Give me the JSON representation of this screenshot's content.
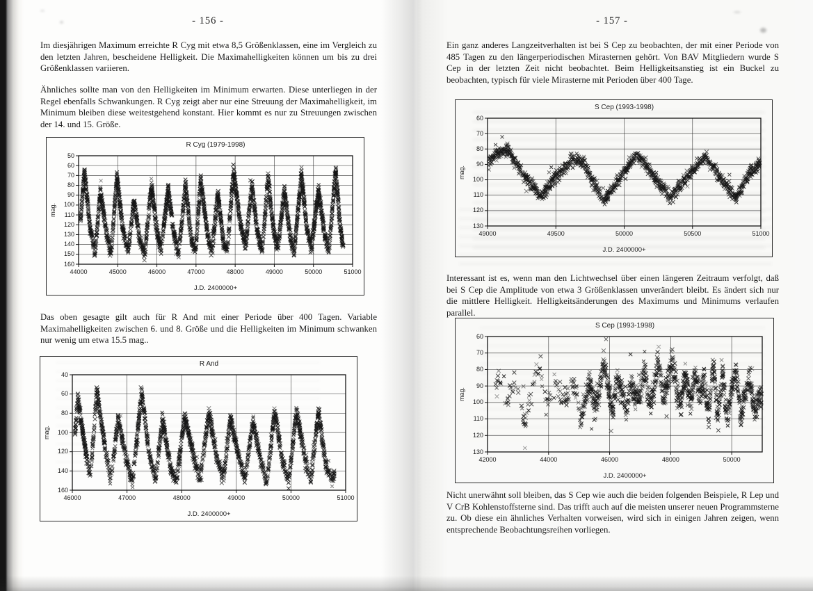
{
  "colors": {
    "ink": "#1b1b1b",
    "paper": "#fdfdfc",
    "marker": "#1c1c1c",
    "grid": "#3a3a3a"
  },
  "scan": {
    "left_page": {
      "page_number": "- 156 -",
      "paragraphs": [
        "Im diesjährigen Maximum erreichte R Cyg mit etwa 8,5 Größenklassen, eine im Vergleich zu den letzten Jahren, bescheidene Helligkeit. Die Maximahelligkeiten können um bis zu drei Größenklassen variieren.",
        "Ähnliches sollte man von den Helligkeiten im Minimum erwarten. Diese unterliegen in der Regel ebenfalls Schwankungen. R Cyg zeigt aber nur eine Streuung der Maximahelligkeit, im Minimum bleiben diese weitestgehend konstant. Hier kommt es nur zu Streuungen zwischen der 14. und 15. Größe.",
        "Das oben gesagte gilt auch für R And mit einer Periode über 400 Tagen. Variable Maximahelligkeiten zwischen 6. und 8. Größe und die Helligkeiten im Minimum schwanken nur wenig um etwa 15.5 mag.."
      ]
    },
    "right_page": {
      "page_number": "- 157 -",
      "paragraphs": [
        "Ein ganz anderes Langzeitverhalten ist bei S Cep zu beobachten, der mit einer Periode von 485 Tagen zu den längerperiodischen Mirasternen gehört. Von BAV Mitgliedern wurde S Cep in der letzten Zeit nicht beobachtet. Beim Helligkeitsanstieg ist ein Buckel zu beobachten, typisch für viele Mirasterne mit Perioden über 400 Tage.",
        "Interessant ist es, wenn man den Lichtwechsel über einen längeren Zeitraum verfolgt, daß bei S Cep die Amplitude von etwa 3 Größenklassen unverändert bleibt. Es ändert sich nur die mittlere Helligkeit. Helligkeitsänderungen des Maximums und Minimums verlaufen parallel.",
        "Nicht unerwähnt soll bleiben, das S Cep wie auch die beiden folgenden Beispiele, R Lep und V CrB  Kohlenstoffsterne sind. Das trifft auch auf die meisten unserer neuen Programmsterne zu. Ob diese ein ähnliches Verhalten vorweisen, wird sich in einigen Jahren zeigen, wenn entsprechende Beobachtungsreihen vorliegen."
      ]
    }
  },
  "chart_data": [
    {
      "type": "scatter",
      "title": "R Cyg (1979-1998)",
      "xlabel": "J.D. 2400000+",
      "ylabel": "mag.",
      "marker": "x",
      "grid": true,
      "xlim": [
        44000,
        51000
      ],
      "ylim": [
        50,
        160
      ],
      "y_axis_inverted_magnitudes": true,
      "xticks": [
        44000,
        45000,
        46000,
        47000,
        48000,
        49000,
        50000,
        51000
      ],
      "yticks": [
        50,
        60,
        70,
        80,
        90,
        100,
        110,
        120,
        130,
        140,
        150,
        160
      ],
      "model": {
        "description": "Mira light curve, period ~430 d; alternating maxima (mag 6.4-9.5) and minima (mag ~14-15); envelope points are [JD-2400000, mag*10]",
        "envelope": [
          [
            44050,
            115
          ],
          [
            44150,
            66
          ],
          [
            44290,
            122
          ],
          [
            44420,
            147
          ],
          [
            44560,
            86
          ],
          [
            44700,
            126
          ],
          [
            44830,
            150
          ],
          [
            44980,
            70
          ],
          [
            45120,
            121
          ],
          [
            45260,
            147
          ],
          [
            45420,
            95
          ],
          [
            45560,
            136
          ],
          [
            45690,
            150
          ],
          [
            45860,
            80
          ],
          [
            46000,
            126
          ],
          [
            46110,
            146
          ],
          [
            46290,
            82
          ],
          [
            46430,
            129
          ],
          [
            46560,
            149
          ],
          [
            46730,
            78
          ],
          [
            46880,
            136
          ],
          [
            46990,
            147
          ],
          [
            47120,
            74
          ],
          [
            47280,
            126
          ],
          [
            47400,
            150
          ],
          [
            47560,
            88
          ],
          [
            47700,
            138
          ],
          [
            47800,
            147
          ],
          [
            47960,
            64
          ],
          [
            48120,
            116
          ],
          [
            48260,
            143
          ],
          [
            48430,
            79
          ],
          [
            48570,
            129
          ],
          [
            48690,
            147
          ],
          [
            48840,
            72
          ],
          [
            48990,
            129
          ],
          [
            49090,
            144
          ],
          [
            49260,
            84
          ],
          [
            49400,
            132
          ],
          [
            49510,
            147
          ],
          [
            49690,
            69
          ],
          [
            49840,
            127
          ],
          [
            49950,
            143
          ],
          [
            50130,
            84
          ],
          [
            50280,
            129
          ],
          [
            50390,
            147
          ],
          [
            50570,
            64
          ],
          [
            50680,
            122
          ],
          [
            50760,
            142
          ]
        ],
        "noise": 4,
        "step": 2.6,
        "bright_bias": true
      }
    },
    {
      "type": "scatter",
      "title": "R And",
      "xlabel": "J.D. 2400000+",
      "ylabel": "mag.",
      "marker": "x",
      "grid": true,
      "xlim": [
        46000,
        51000
      ],
      "ylim": [
        40,
        160
      ],
      "y_axis_inverted_magnitudes": true,
      "xticks": [
        46000,
        47000,
        48000,
        49000,
        50000,
        51000
      ],
      "yticks": [
        40,
        60,
        80,
        100,
        120,
        140,
        160
      ],
      "model": {
        "description": "Mira light curve, period ~410 d; maxima mag 5.5-9.0, minima ~15.0-15.5; envelope points are [JD-2400000, mag*10]",
        "envelope": [
          [
            46050,
            100
          ],
          [
            46100,
            63
          ],
          [
            46220,
            112
          ],
          [
            46330,
            146
          ],
          [
            46450,
            56
          ],
          [
            46600,
            117
          ],
          [
            46700,
            150
          ],
          [
            46840,
            86
          ],
          [
            46980,
            126
          ],
          [
            47100,
            152
          ],
          [
            47270,
            57
          ],
          [
            47400,
            121
          ],
          [
            47520,
            150
          ],
          [
            47650,
            86
          ],
          [
            47800,
            138
          ],
          [
            47900,
            152
          ],
          [
            48060,
            82
          ],
          [
            48200,
            121
          ],
          [
            48330,
            150
          ],
          [
            48500,
            79
          ],
          [
            48640,
            126
          ],
          [
            48760,
            150
          ],
          [
            48890,
            85
          ],
          [
            49030,
            121
          ],
          [
            49150,
            150
          ],
          [
            49310,
            88
          ],
          [
            49450,
            131
          ],
          [
            49560,
            152
          ],
          [
            49700,
            77
          ],
          [
            49850,
            131
          ],
          [
            49960,
            152
          ],
          [
            50100,
            77
          ],
          [
            50250,
            126
          ],
          [
            50360,
            152
          ],
          [
            50500,
            77
          ],
          [
            50640,
            136
          ],
          [
            50740,
            150
          ],
          [
            50800,
            141
          ]
        ],
        "noise": 4.5,
        "step": 2.6,
        "bright_bias": true
      }
    },
    {
      "type": "scatter",
      "title": "S Cep (1993-1998)",
      "xlabel": "J.D. 2400000+",
      "ylabel": "mag.",
      "marker": "x",
      "grid": true,
      "xlim": [
        49000,
        51000
      ],
      "ylim": [
        60,
        130
      ],
      "y_axis_inverted_magnitudes": true,
      "xticks": [
        49000,
        49500,
        50000,
        50500,
        51000
      ],
      "yticks": [
        60,
        70,
        80,
        90,
        100,
        110,
        120,
        130
      ],
      "model": {
        "description": "S Cep recent light curve, period ~485 d; maxima ~mag 8.0-8.7, minima ~11.1-11.5; envelope points are [JD-2400000, mag*10]",
        "envelope": [
          [
            49000,
            90
          ],
          [
            49060,
            84
          ],
          [
            49150,
            80
          ],
          [
            49250,
            95
          ],
          [
            49400,
            111
          ],
          [
            49480,
            100
          ],
          [
            49620,
            87
          ],
          [
            49700,
            89
          ],
          [
            49850,
            114
          ],
          [
            49960,
            100
          ],
          [
            50100,
            83
          ],
          [
            50250,
            102
          ],
          [
            50340,
            111
          ],
          [
            50450,
            99
          ],
          [
            50600,
            85
          ],
          [
            50720,
            101
          ],
          [
            50820,
            112
          ],
          [
            50920,
            95
          ],
          [
            51000,
            89
          ]
        ],
        "noise": 2.8,
        "step": 2.6,
        "bright_bias": false
      }
    },
    {
      "type": "scatter",
      "title": "S Cep (1993-1998)",
      "xlabel": "J.D. 2400000+",
      "ylabel": "mag.",
      "marker": "x",
      "grid": true,
      "xlim": [
        42000,
        51000
      ],
      "ylim": [
        60,
        130
      ],
      "y_axis_inverted_magnitudes": true,
      "xticks": [
        42000,
        44000,
        46000,
        48000,
        50000
      ],
      "yticks": [
        60,
        70,
        80,
        90,
        100,
        110,
        120,
        130
      ],
      "model": {
        "description": "S Cep long-term light curve, sparse coverage before JD 2445000; amplitude ~3 mag constant, mean level drifting; envelope points are [JD-2400000, mag*10]",
        "envelope": [
          [
            42250,
            90
          ],
          [
            42400,
            84
          ],
          [
            42650,
            100
          ],
          [
            42900,
            86
          ],
          [
            43100,
            104
          ],
          [
            43250,
            112
          ],
          [
            43400,
            95
          ],
          [
            43550,
            90
          ],
          [
            43700,
            76
          ],
          [
            43900,
            100
          ],
          [
            44100,
            96
          ],
          [
            44250,
            88
          ],
          [
            44450,
            98
          ],
          [
            44600,
            102
          ],
          [
            44750,
            90
          ],
          [
            44900,
            93
          ],
          [
            45050,
            112
          ],
          [
            45200,
            98
          ],
          [
            45350,
            88
          ],
          [
            45500,
            102
          ],
          [
            45650,
            95
          ],
          [
            45800,
            74
          ],
          [
            45950,
            92
          ],
          [
            46100,
            108
          ],
          [
            46250,
            82
          ],
          [
            46400,
            95
          ],
          [
            46550,
            106
          ],
          [
            46700,
            88
          ],
          [
            46850,
            98
          ],
          [
            47000,
            95
          ],
          [
            47150,
            80
          ],
          [
            47300,
            102
          ],
          [
            47450,
            92
          ],
          [
            47600,
            74
          ],
          [
            47750,
            95
          ],
          [
            47900,
            90
          ],
          [
            48050,
            73
          ],
          [
            48200,
            94
          ],
          [
            48350,
            100
          ],
          [
            48500,
            80
          ],
          [
            48650,
            102
          ],
          [
            48800,
            82
          ],
          [
            48950,
            96
          ],
          [
            49100,
            87
          ],
          [
            49250,
            108
          ],
          [
            49400,
            76
          ],
          [
            49550,
            110
          ],
          [
            49700,
            81
          ],
          [
            49850,
            113
          ],
          [
            50000,
            90
          ],
          [
            50150,
            82
          ],
          [
            50300,
            110
          ],
          [
            50450,
            93
          ],
          [
            50600,
            85
          ],
          [
            50750,
            108
          ],
          [
            50900,
            95
          ],
          [
            51000,
            100
          ]
        ],
        "noise": 5,
        "step": 7,
        "bright_bias": false,
        "density": [
          [
            42200,
            0.22
          ],
          [
            44900,
            0.28
          ],
          [
            45150,
            0.85
          ],
          [
            51000,
            0.95
          ]
        ]
      }
    }
  ]
}
